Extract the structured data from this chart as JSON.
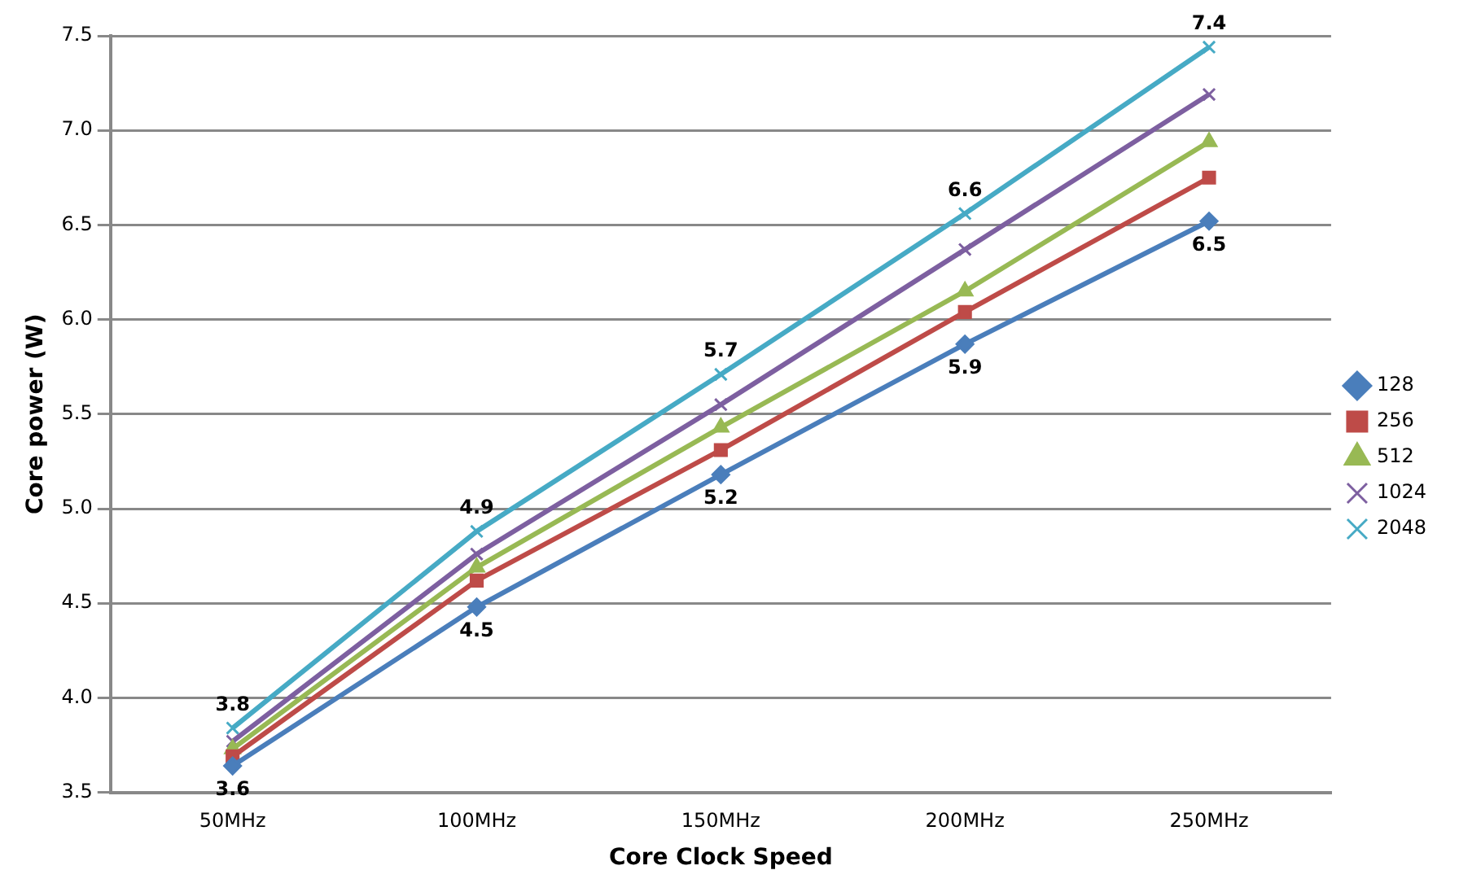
{
  "chart_data": {
    "type": "line",
    "xlabel": "Core Clock Speed",
    "ylabel": "Core power (W)",
    "categories": [
      "50MHz",
      "100MHz",
      "150MHz",
      "200MHz",
      "250MHz"
    ],
    "series": [
      {
        "name": "128",
        "color": "#4a7ebb",
        "marker": "diamond",
        "values": [
          3.64,
          4.48,
          5.18,
          5.87,
          6.52
        ],
        "value_labels": [
          "3.6",
          "4.5",
          "5.2",
          "5.9",
          "6.5"
        ]
      },
      {
        "name": "256",
        "color": "#be4b48",
        "marker": "square",
        "values": [
          3.69,
          4.62,
          5.31,
          6.04,
          6.75
        ]
      },
      {
        "name": "512",
        "color": "#98b954",
        "marker": "triangle",
        "values": [
          3.73,
          4.69,
          5.43,
          6.15,
          6.94
        ]
      },
      {
        "name": "1024",
        "color": "#7d5fa0",
        "marker": "cross",
        "values": [
          3.77,
          4.76,
          5.55,
          6.37,
          7.19
        ]
      },
      {
        "name": "2048",
        "color": "#46aac5",
        "marker": "cross",
        "values": [
          3.84,
          4.88,
          5.71,
          6.56,
          7.44
        ],
        "value_labels": [
          "3.8",
          "4.9",
          "5.7",
          "6.6",
          "7.4"
        ]
      }
    ],
    "ylim": [
      3.5,
      7.5
    ],
    "yticks": [
      {
        "value": 3.5,
        "label": "3.5"
      },
      {
        "value": 4,
        "label": "4.0"
      },
      {
        "value": 4.5,
        "label": "4.5"
      },
      {
        "value": 5,
        "label": "5.0"
      },
      {
        "value": 5.5,
        "label": "5.5"
      },
      {
        "value": 6,
        "label": "6.0"
      },
      {
        "value": 6.5,
        "label": "6.5"
      },
      {
        "value": 7,
        "label": "7.0"
      },
      {
        "value": 7.5,
        "label": "7.5"
      }
    ],
    "grid": "y",
    "legend": "right",
    "line_style": "solid"
  }
}
